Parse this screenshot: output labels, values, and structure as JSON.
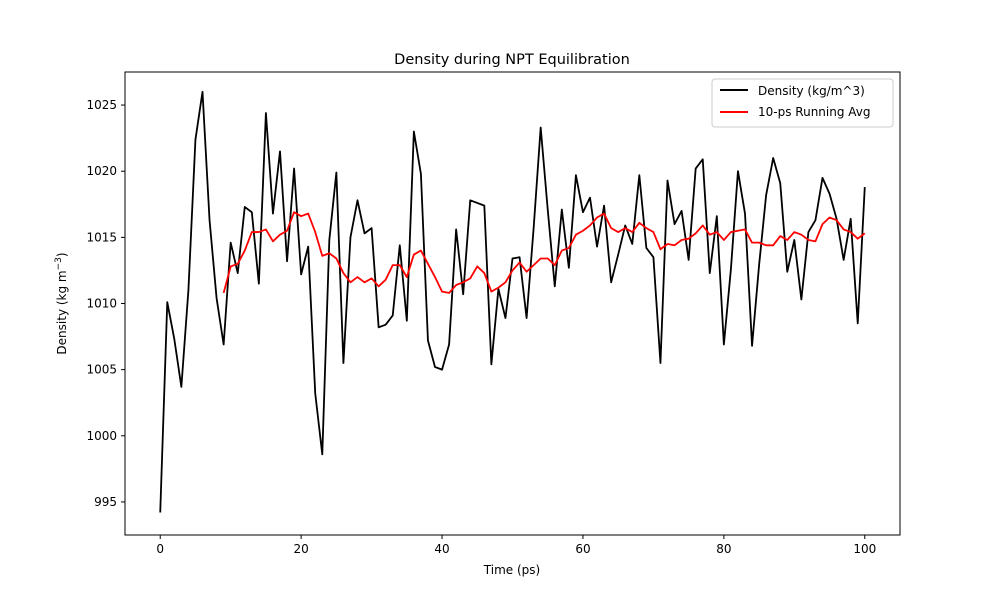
{
  "chart_data": {
    "type": "line",
    "title": "Density during NPT Equilibration",
    "xlabel": "Time (ps)",
    "ylabel_main": "Density (kg m",
    "ylabel_sup": "−3",
    "ylabel_end": ")",
    "xlim": [
      -5,
      105
    ],
    "ylim": [
      992.5,
      1027.5
    ],
    "xticks": [
      0,
      20,
      40,
      60,
      80,
      100
    ],
    "yticks": [
      995,
      1000,
      1005,
      1010,
      1015,
      1020,
      1025
    ],
    "legend_position": "top-right",
    "series": [
      {
        "name": "Density (kg/m^3)",
        "color": "#000000",
        "x": [
          0,
          1,
          2,
          3,
          4,
          5,
          6,
          7,
          8,
          9,
          10,
          11,
          12,
          13,
          14,
          15,
          16,
          17,
          18,
          19,
          20,
          21,
          22,
          23,
          24,
          25,
          26,
          27,
          28,
          29,
          30,
          31,
          32,
          33,
          34,
          35,
          36,
          37,
          38,
          39,
          40,
          41,
          42,
          43,
          44,
          45,
          46,
          47,
          48,
          49,
          50,
          51,
          52,
          53,
          54,
          55,
          56,
          57,
          58,
          59,
          60,
          61,
          62,
          63,
          64,
          65,
          66,
          67,
          68,
          69,
          70,
          71,
          72,
          73,
          74,
          75,
          76,
          77,
          78,
          79,
          80,
          81,
          82,
          83,
          84,
          85,
          86,
          87,
          88,
          89,
          90,
          91,
          92,
          93,
          94,
          95,
          96,
          97,
          98,
          99,
          100
        ],
        "y": [
          994.2,
          1010.1,
          1007.3,
          1003.7,
          1011.0,
          1022.4,
          1026.0,
          1016.3,
          1010.4,
          1006.9,
          1014.6,
          1012.3,
          1017.3,
          1016.9,
          1011.5,
          1024.4,
          1016.8,
          1021.5,
          1013.2,
          1020.2,
          1012.2,
          1014.3,
          1003.2,
          998.6,
          1014.8,
          1019.9,
          1005.5,
          1015.0,
          1017.8,
          1015.3,
          1015.7,
          1008.2,
          1008.4,
          1009.1,
          1014.4,
          1008.7,
          1023.0,
          1019.8,
          1007.2,
          1005.2,
          1005.0,
          1006.9,
          1015.6,
          1010.7,
          1017.8,
          1017.6,
          1017.4,
          1005.4,
          1011.1,
          1008.9,
          1013.4,
          1013.5,
          1008.9,
          1015.7,
          1023.3,
          1017.1,
          1011.3,
          1017.1,
          1012.7,
          1019.7,
          1016.9,
          1018.0,
          1014.3,
          1017.4,
          1011.6,
          1013.7,
          1015.9,
          1014.5,
          1019.7,
          1014.2,
          1013.5,
          1005.5,
          1019.3,
          1016.0,
          1017.0,
          1013.3,
          1020.2,
          1020.9,
          1012.3,
          1016.6,
          1006.9,
          1012.6,
          1020.0,
          1016.8,
          1006.8,
          1012.9,
          1018.2,
          1021.0,
          1019.1,
          1012.4,
          1014.8,
          1010.3,
          1015.4,
          1016.3,
          1019.5,
          1018.3,
          1016.4,
          1013.3,
          1016.4,
          1008.5,
          1018.8
        ]
      },
      {
        "name": "10-ps Running Avg",
        "color": "#ff0000",
        "x": [
          9,
          10,
          11,
          12,
          13,
          14,
          15,
          16,
          17,
          18,
          19,
          20,
          21,
          22,
          23,
          24,
          25,
          26,
          27,
          28,
          29,
          30,
          31,
          32,
          33,
          34,
          35,
          36,
          37,
          38,
          39,
          40,
          41,
          42,
          43,
          44,
          45,
          46,
          47,
          48,
          49,
          50,
          51,
          52,
          53,
          54,
          55,
          56,
          57,
          58,
          59,
          60,
          61,
          62,
          63,
          64,
          65,
          66,
          67,
          68,
          69,
          70,
          71,
          72,
          73,
          74,
          75,
          76,
          77,
          78,
          79,
          80,
          81,
          82,
          83,
          84,
          85,
          86,
          87,
          88,
          89,
          90,
          91,
          92,
          93,
          94,
          95,
          96,
          97,
          98,
          99,
          100
        ],
        "y": [
          1010.8,
          1012.8,
          1013.0,
          1014.0,
          1015.4,
          1015.4,
          1015.6,
          1014.7,
          1015.2,
          1015.5,
          1016.9,
          1016.6,
          1016.8,
          1015.4,
          1013.6,
          1013.8,
          1013.4,
          1012.3,
          1011.6,
          1012.0,
          1011.6,
          1011.9,
          1011.3,
          1011.8,
          1012.9,
          1012.9,
          1012.0,
          1013.7,
          1014.0,
          1013.0,
          1012.0,
          1010.9,
          1010.8,
          1011.4,
          1011.6,
          1011.9,
          1012.8,
          1012.3,
          1010.9,
          1011.2,
          1011.6,
          1012.5,
          1013.1,
          1012.4,
          1012.9,
          1013.4,
          1013.4,
          1012.9,
          1014.0,
          1014.2,
          1015.2,
          1015.5,
          1015.9,
          1016.5,
          1016.8,
          1015.7,
          1015.4,
          1015.7,
          1015.4,
          1016.1,
          1015.7,
          1015.4,
          1014.1,
          1014.5,
          1014.4,
          1014.8,
          1014.9,
          1015.3,
          1015.9,
          1015.2,
          1015.4,
          1014.8,
          1015.4,
          1015.5,
          1015.6,
          1014.6,
          1014.6,
          1014.4,
          1014.4,
          1015.1,
          1014.8,
          1015.4,
          1015.2,
          1014.8,
          1014.7,
          1016.0,
          1016.5,
          1016.3,
          1015.6,
          1015.4,
          1014.9,
          1015.3
        ]
      }
    ]
  }
}
